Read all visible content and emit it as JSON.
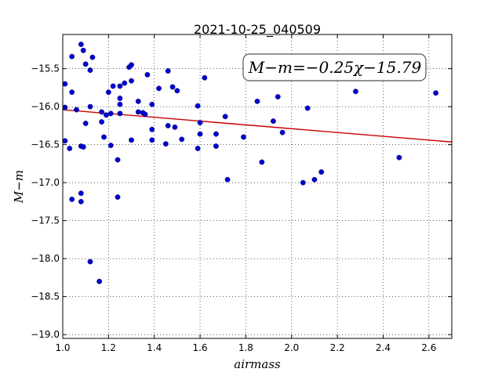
{
  "chart_data": {
    "type": "scatter",
    "title": "2021-10-25_040509",
    "xlabel": "airmass",
    "ylabel": "M−m",
    "xlim": [
      1.0,
      2.7
    ],
    "ylim": [
      -19.05,
      -15.05
    ],
    "y_inverted": false,
    "grid": true,
    "x_ticks": [
      "1.0",
      "1.2",
      "1.4",
      "1.6",
      "1.8",
      "2.0",
      "2.2",
      "2.4",
      "2.6"
    ],
    "x_tick_values": [
      1.0,
      1.2,
      1.4,
      1.6,
      1.8,
      2.0,
      2.2,
      2.4,
      2.6
    ],
    "y_ticks": [
      "−15.5",
      "−16.0",
      "−16.5",
      "−17.0",
      "−17.5",
      "−18.0",
      "−18.5",
      "−19.0"
    ],
    "y_tick_values": [
      -15.5,
      -16.0,
      -16.5,
      -17.0,
      -17.5,
      -18.0,
      -18.5,
      -19.0
    ],
    "annotation": "M−m=−0.25χ−15.79",
    "fit": {
      "slope": -0.25,
      "intercept": -15.79,
      "color": "#cc0000"
    },
    "point_color": "#0000cc",
    "points": [
      [
        1.01,
        -15.7
      ],
      [
        1.01,
        -16.01
      ],
      [
        1.01,
        -16.45
      ],
      [
        1.03,
        -16.55
      ],
      [
        1.04,
        -17.22
      ],
      [
        1.04,
        -15.81
      ],
      [
        1.04,
        -15.34
      ],
      [
        1.06,
        -16.04
      ],
      [
        1.08,
        -15.18
      ],
      [
        1.08,
        -16.52
      ],
      [
        1.08,
        -17.14
      ],
      [
        1.08,
        -17.25
      ],
      [
        1.09,
        -16.53
      ],
      [
        1.09,
        -15.26
      ],
      [
        1.1,
        -16.22
      ],
      [
        1.1,
        -15.44
      ],
      [
        1.12,
        -18.04
      ],
      [
        1.12,
        -16.0
      ],
      [
        1.12,
        -15.52
      ],
      [
        1.13,
        -15.35
      ],
      [
        1.16,
        -18.3
      ],
      [
        1.17,
        -16.07
      ],
      [
        1.17,
        -16.2
      ],
      [
        1.18,
        -16.4
      ],
      [
        1.19,
        -16.11
      ],
      [
        1.2,
        -15.81
      ],
      [
        1.21,
        -16.09
      ],
      [
        1.21,
        -16.51
      ],
      [
        1.22,
        -15.73
      ],
      [
        1.24,
        -17.19
      ],
      [
        1.24,
        -16.7
      ],
      [
        1.25,
        -15.73
      ],
      [
        1.25,
        -15.89
      ],
      [
        1.25,
        -16.09
      ],
      [
        1.25,
        -15.97
      ],
      [
        1.27,
        -15.69
      ],
      [
        1.29,
        -15.48
      ],
      [
        1.3,
        -15.45
      ],
      [
        1.3,
        -15.66
      ],
      [
        1.3,
        -16.44
      ],
      [
        1.33,
        -16.07
      ],
      [
        1.33,
        -15.93
      ],
      [
        1.35,
        -16.08
      ],
      [
        1.36,
        -16.1
      ],
      [
        1.37,
        -15.58
      ],
      [
        1.39,
        -15.97
      ],
      [
        1.39,
        -16.3
      ],
      [
        1.39,
        -16.44
      ],
      [
        1.42,
        -15.76
      ],
      [
        1.45,
        -16.49
      ],
      [
        1.46,
        -15.53
      ],
      [
        1.46,
        -16.25
      ],
      [
        1.48,
        -15.74
      ],
      [
        1.49,
        -16.27
      ],
      [
        1.5,
        -15.79
      ],
      [
        1.52,
        -16.43
      ],
      [
        1.59,
        -16.55
      ],
      [
        1.59,
        -15.99
      ],
      [
        1.6,
        -16.21
      ],
      [
        1.6,
        -16.36
      ],
      [
        1.62,
        -15.62
      ],
      [
        1.67,
        -16.36
      ],
      [
        1.67,
        -16.52
      ],
      [
        1.71,
        -16.13
      ],
      [
        1.72,
        -16.96
      ],
      [
        1.79,
        -16.4
      ],
      [
        1.85,
        -15.93
      ],
      [
        1.87,
        -16.73
      ],
      [
        1.92,
        -16.19
      ],
      [
        1.94,
        -15.87
      ],
      [
        1.96,
        -16.34
      ],
      [
        2.05,
        -17.0
      ],
      [
        2.07,
        -16.02
      ],
      [
        2.1,
        -16.96
      ],
      [
        2.13,
        -16.86
      ],
      [
        2.28,
        -15.8
      ],
      [
        2.47,
        -16.67
      ],
      [
        2.63,
        -15.82
      ]
    ]
  }
}
